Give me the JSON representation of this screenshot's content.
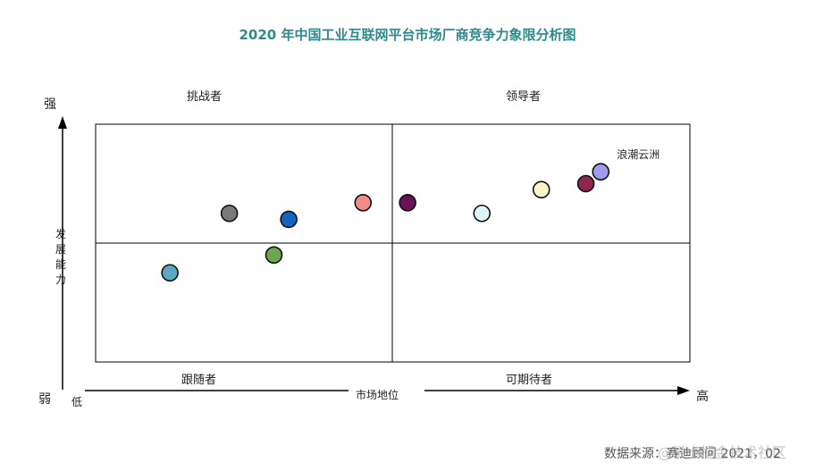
{
  "chart_data": {
    "type": "scatter",
    "title": "2020 年中国工业互联网平台市场厂商竞争力象限分析图",
    "xlabel": "市场地位",
    "ylabel": "发展能力",
    "x_low_label": "低",
    "x_high_label": "高",
    "y_high_label": "强",
    "y_low_label": "弱",
    "quadrants": {
      "top_left": "挑战者",
      "top_right": "领导者",
      "bottom_left": "跟随者",
      "bottom_right": "可期待者"
    },
    "xlim": [
      0,
      100
    ],
    "ylim": [
      0,
      100
    ],
    "points": [
      {
        "x": 12.5,
        "y": 37.5,
        "color": "#5aa9be"
      },
      {
        "x": 22.5,
        "y": 62.5,
        "color": "#7a7a7a"
      },
      {
        "x": 30.0,
        "y": 45.0,
        "color": "#6aa84f"
      },
      {
        "x": 32.5,
        "y": 60.0,
        "color": "#1565c0"
      },
      {
        "x": 45.0,
        "y": 67.0,
        "color": "#f28b8b"
      },
      {
        "x": 52.5,
        "y": 67.0,
        "color": "#6b1257"
      },
      {
        "x": 65.0,
        "y": 62.5,
        "color": "#dff5f7"
      },
      {
        "x": 75.0,
        "y": 72.5,
        "color": "#f8f6c8"
      },
      {
        "x": 82.5,
        "y": 75.0,
        "color": "#8e2650"
      },
      {
        "x": 85.0,
        "y": 80.0,
        "color": "#9f9cf0",
        "label": "浪潮云洲"
      }
    ]
  },
  "source": "数据来源：赛迪顾问 2021，02",
  "watermark": "@稀土掘金技术社区"
}
